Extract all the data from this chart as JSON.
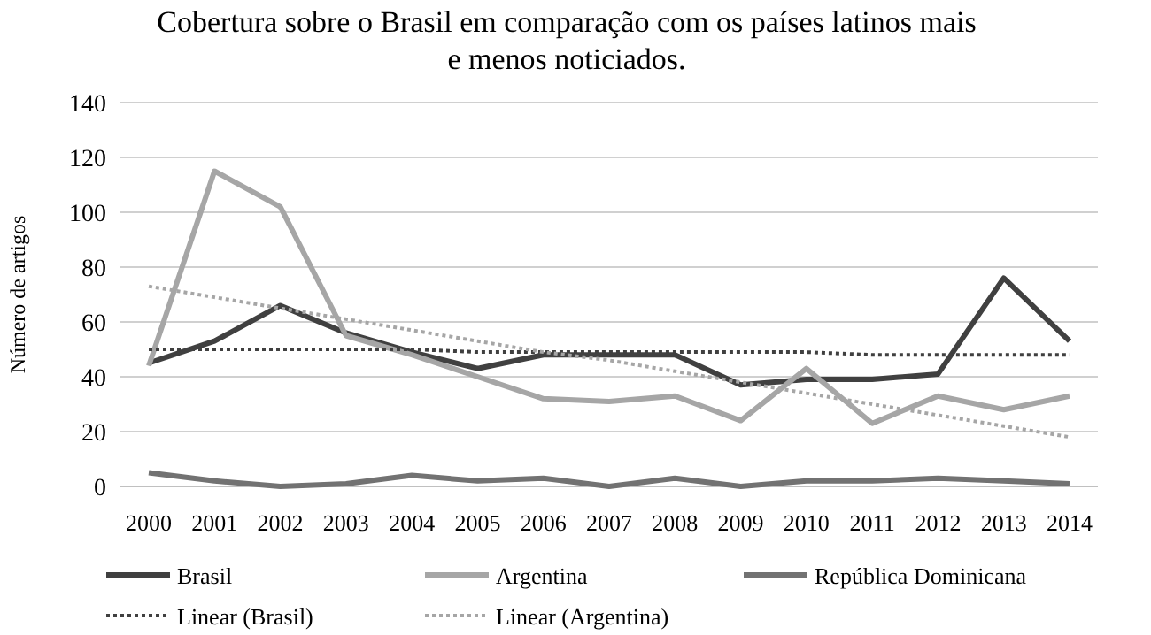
{
  "chart_data": {
    "type": "line",
    "title": "Cobertura sobre o Brasil em comparação  com os países latinos mais\ne menos noticiados.",
    "ylabel": "Número de artigos",
    "categories": [
      "2000",
      "2001",
      "2002",
      "2003",
      "2004",
      "2005",
      "2006",
      "2007",
      "2008",
      "2009",
      "2010",
      "2011",
      "2012",
      "2013",
      "2014"
    ],
    "series": [
      {
        "name": "Brasil",
        "color": "#404040",
        "values": [
          45,
          53,
          66,
          56,
          49,
          43,
          48,
          48,
          48,
          37,
          39,
          39,
          41,
          76,
          53
        ]
      },
      {
        "name": "Argentina",
        "color": "#a6a6a6",
        "values": [
          44,
          115,
          102,
          55,
          48,
          40,
          32,
          31,
          33,
          24,
          43,
          23,
          33,
          28,
          33
        ]
      },
      {
        "name": "República Dominicana",
        "color": "#727272",
        "values": [
          5,
          2,
          0,
          1,
          4,
          2,
          3,
          0,
          3,
          0,
          2,
          2,
          3,
          2,
          1
        ]
      },
      {
        "name": "Linear (Brasil)",
        "color": "#404040",
        "line_style": "dotted",
        "values": [
          50,
          50,
          50,
          50,
          50,
          49,
          49,
          49,
          49,
          49,
          49,
          48,
          48,
          48,
          48
        ]
      },
      {
        "name": "Linear (Argentina)",
        "color": "#a6a6a6",
        "line_style": "dotted",
        "values": [
          73,
          69,
          65,
          61,
          57,
          53,
          49,
          46,
          42,
          38,
          34,
          30,
          26,
          22,
          18
        ]
      }
    ],
    "ylim": [
      0,
      140
    ],
    "yticks": [
      0,
      20,
      40,
      60,
      80,
      100,
      120,
      140
    ],
    "grid": "y",
    "legend": "bottom",
    "line_style": "solid",
    "marker": "none"
  }
}
